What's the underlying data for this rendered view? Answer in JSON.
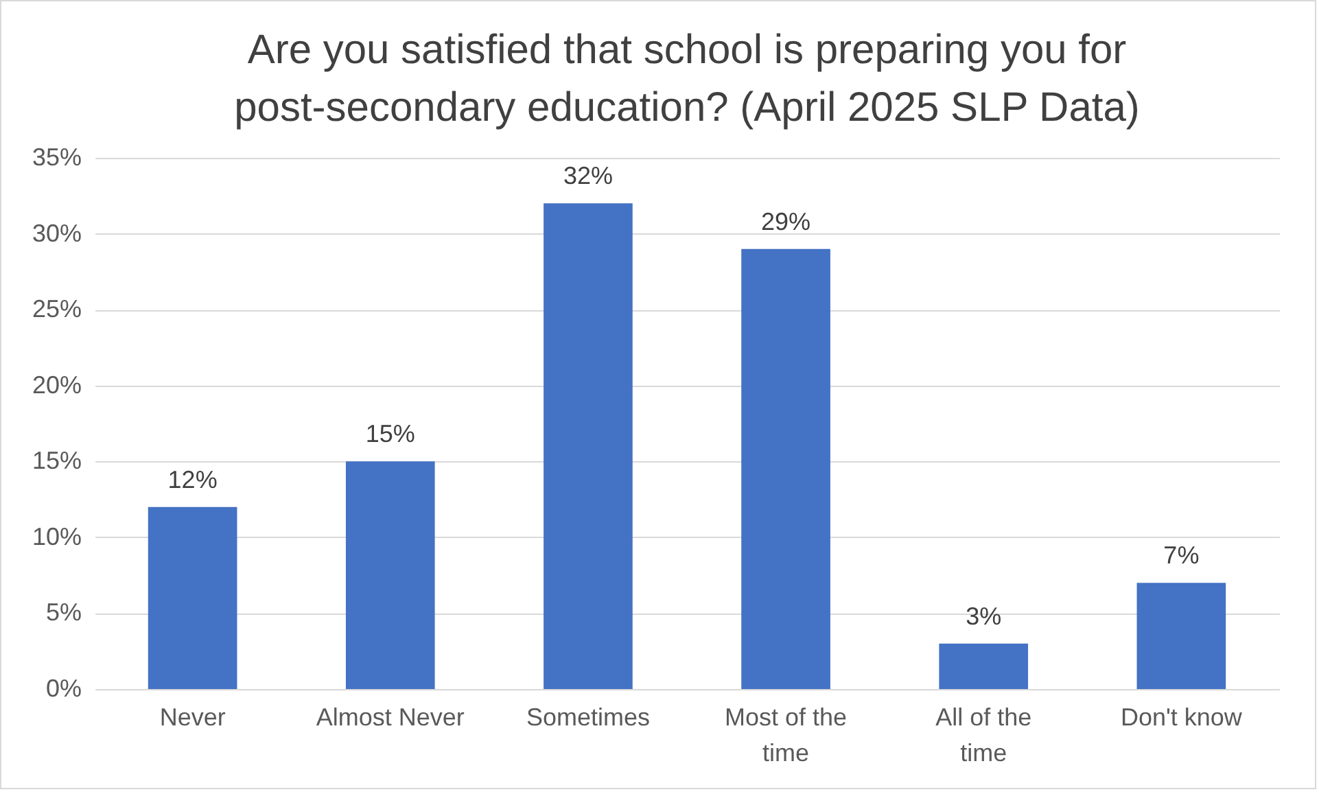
{
  "chart_data": {
    "type": "bar",
    "title": "Are you satisfied that school is preparing you for post-secondary education? (April 2025 SLP Data)",
    "categories": [
      "Never",
      "Almost Never",
      "Sometimes",
      "Most of the time",
      "All of the time",
      "Don't know"
    ],
    "values": [
      12,
      15,
      32,
      29,
      3,
      7
    ],
    "value_labels": [
      "12%",
      "15%",
      "32%",
      "29%",
      "3%",
      "7%"
    ],
    "color": "#4472c4",
    "ylim": [
      0,
      35
    ],
    "yticks": [
      {
        "value": 0,
        "label": "0%"
      },
      {
        "value": 5,
        "label": "5%"
      },
      {
        "value": 10,
        "label": "10%"
      },
      {
        "value": 15,
        "label": "15%"
      },
      {
        "value": 20,
        "label": "20%"
      },
      {
        "value": 25,
        "label": "25%"
      },
      {
        "value": 30,
        "label": "30%"
      },
      {
        "value": 35,
        "label": "35%"
      }
    ],
    "grid": "y"
  }
}
